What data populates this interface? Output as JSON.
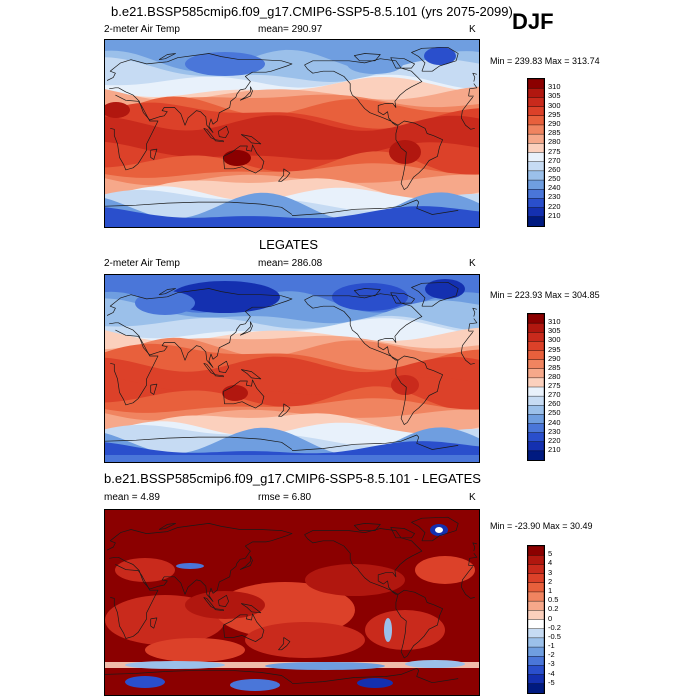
{
  "season": "DJF",
  "panels": [
    {
      "id": "model",
      "title": "b.e21.BSSP585cmip6.f09_g17.CMIP6-SSP5-8.5.101 (yrs 2075-2099)",
      "left_label": "2-meter Air Temp",
      "center_label": "mean= 290.97",
      "units": "K",
      "minmax": "Min = 239.83 Max = 313.74",
      "colorbar_labels": [
        "310",
        "305",
        "300",
        "295",
        "290",
        "285",
        "280",
        "275",
        "270",
        "260",
        "250",
        "240",
        "230",
        "220",
        "210"
      ],
      "colors": [
        "#8b0000",
        "#b1170f",
        "#c92a1c",
        "#dc4129",
        "#e8603c",
        "#f08460",
        "#f6a88a",
        "#fbd0bd",
        "#e8f1fb",
        "#c6dbf3",
        "#9bc0ea",
        "#6f9ee0",
        "#4a76d9",
        "#2a4fcc",
        "#1430b0",
        "#001a80"
      ]
    },
    {
      "id": "obs",
      "title": "LEGATES",
      "left_label": "2-meter Air Temp",
      "center_label": "mean= 286.08",
      "units": "K",
      "minmax": "Min = 223.93 Max = 304.85",
      "colorbar_labels": [
        "310",
        "305",
        "300",
        "295",
        "290",
        "285",
        "280",
        "275",
        "270",
        "260",
        "250",
        "240",
        "230",
        "220",
        "210"
      ],
      "colors": [
        "#8b0000",
        "#b1170f",
        "#c92a1c",
        "#dc4129",
        "#e8603c",
        "#f08460",
        "#f6a88a",
        "#fbd0bd",
        "#e8f1fb",
        "#c6dbf3",
        "#9bc0ea",
        "#6f9ee0",
        "#4a76d9",
        "#2a4fcc",
        "#1430b0",
        "#001a80"
      ]
    },
    {
      "id": "diff",
      "title": "b.e21.BSSP585cmip6.f09_g17.CMIP6-SSP5-8.5.101 - LEGATES",
      "left_label": "mean =   4.89",
      "center_label": "rmse =   6.80",
      "units": "K",
      "minmax": "Min = -23.90 Max =  30.49",
      "colorbar_labels": [
        "5",
        "4",
        "3",
        "2",
        "1",
        "0.5",
        "0.2",
        "0",
        "-0.2",
        "-0.5",
        "-1",
        "-2",
        "-3",
        "-4",
        "-5"
      ],
      "colors": [
        "#8b0000",
        "#b1170f",
        "#c92a1c",
        "#dc4129",
        "#e8603c",
        "#f08460",
        "#f6a88a",
        "#fbd0bd",
        "#ffffff",
        "#c6dbf3",
        "#9bc0ea",
        "#6f9ee0",
        "#4a76d9",
        "#2a4fcc",
        "#1430b0",
        "#001a80"
      ]
    }
  ],
  "chart_data": [
    {
      "type": "heatmap",
      "title": "b.e21.BSSP585cmip6.f09_g17.CMIP6-SSP5-8.5.101 (yrs 2075-2099)",
      "variable": "2-meter Air Temp",
      "units": "K",
      "mean": 290.97,
      "min": 239.83,
      "max": 313.74,
      "contour_levels": [
        210,
        220,
        230,
        240,
        250,
        260,
        270,
        275,
        280,
        285,
        290,
        295,
        300,
        305,
        310
      ]
    },
    {
      "type": "heatmap",
      "title": "LEGATES",
      "variable": "2-meter Air Temp",
      "units": "K",
      "mean": 286.08,
      "min": 223.93,
      "max": 304.85,
      "contour_levels": [
        210,
        220,
        230,
        240,
        250,
        260,
        270,
        275,
        280,
        285,
        290,
        295,
        300,
        305,
        310
      ]
    },
    {
      "type": "heatmap",
      "title": "b.e21.BSSP585cmip6.f09_g17.CMIP6-SSP5-8.5.101 - LEGATES",
      "units": "K",
      "mean": 4.89,
      "rmse": 6.8,
      "min": -23.9,
      "max": 30.49,
      "contour_levels": [
        -5,
        -4,
        -3,
        -2,
        -1,
        -0.5,
        -0.2,
        0,
        0.2,
        0.5,
        1,
        2,
        3,
        4,
        5
      ]
    }
  ]
}
